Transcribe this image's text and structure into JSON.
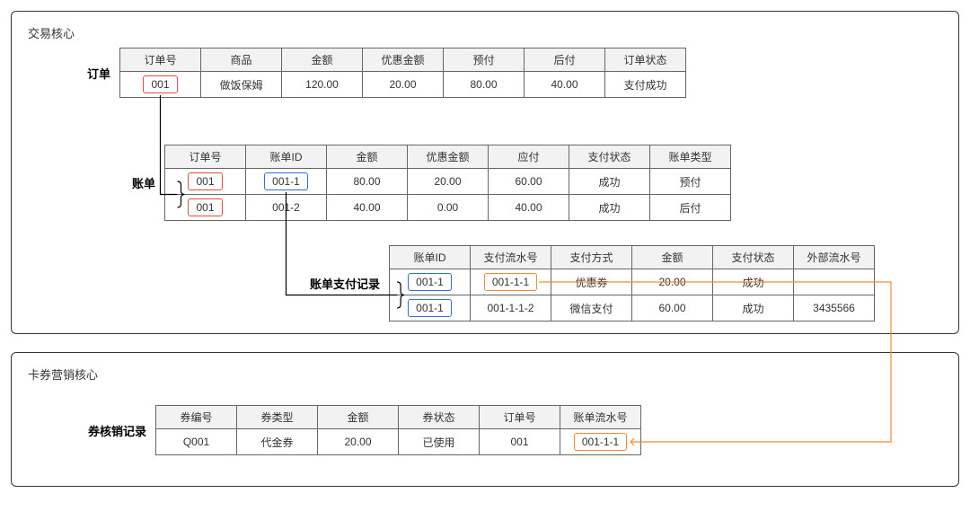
{
  "panel1": {
    "title": "交易核心"
  },
  "panel2": {
    "title": "卡券营销核心"
  },
  "colors": {
    "border": "#666666",
    "panel_border": "#333333",
    "header_bg": "#f2f2f2",
    "highlight_red": "#e94b3c",
    "highlight_blue": "#2e6fdb",
    "highlight_orange": "#f08c2e",
    "text": "#333333"
  },
  "order": {
    "label": "订单",
    "headers": [
      "订单号",
      "商品",
      "金额",
      "优惠金额",
      "预付",
      "后付",
      "订单状态"
    ],
    "row": {
      "id": "001",
      "product": "做饭保姆",
      "amount": "120.00",
      "discount": "20.00",
      "prepay": "80.00",
      "postpay": "40.00",
      "status": "支付成功"
    }
  },
  "bill": {
    "label": "账单",
    "headers": [
      "订单号",
      "账单ID",
      "金额",
      "优惠金额",
      "应付",
      "支付状态",
      "账单类型"
    ],
    "rows": [
      {
        "order": "001",
        "bill_id": "001-1",
        "amount": "80.00",
        "discount": "20.00",
        "due": "60.00",
        "pay_status": "成功",
        "type": "预付"
      },
      {
        "order": "001",
        "bill_id": "001-2",
        "amount": "40.00",
        "discount": "0.00",
        "due": "40.00",
        "pay_status": "成功",
        "type": "后付"
      }
    ]
  },
  "payrec": {
    "label": "账单支付记录",
    "headers": [
      "账单ID",
      "支付流水号",
      "支付方式",
      "金额",
      "支付状态",
      "外部流水号"
    ],
    "rows": [
      {
        "bill_id": "001-1",
        "serial": "001-1-1",
        "method": "优惠券",
        "amount": "20.00",
        "status": "成功",
        "ext": ""
      },
      {
        "bill_id": "001-1",
        "serial": "001-1-1-2",
        "method": "微信支付",
        "amount": "60.00",
        "status": "成功",
        "ext": "3435566"
      }
    ]
  },
  "coupon": {
    "label": "券核销记录",
    "headers": [
      "券编号",
      "券类型",
      "金额",
      "券状态",
      "订单号",
      "账单流水号"
    ],
    "row": {
      "code": "Q001",
      "type": "代金券",
      "amount": "20.00",
      "status": "已使用",
      "order": "001",
      "bill_serial": "001-1-1"
    }
  }
}
